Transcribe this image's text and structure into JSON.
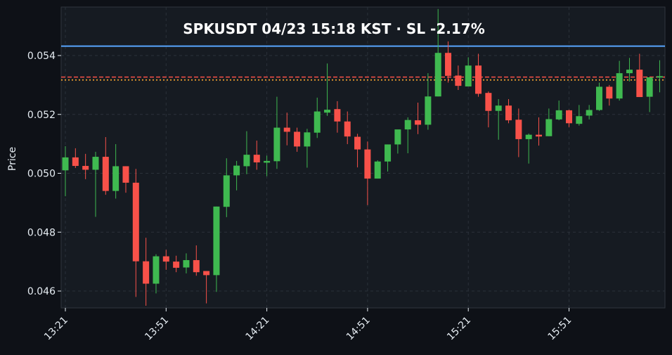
{
  "chart_data": {
    "type": "candlestick",
    "title": "SPKUSDT  04/23 15:18 KST  ·  SL -2.17%",
    "symbol": "SPKUSDT",
    "date": "04/23",
    "time": "15:18 KST",
    "stop_loss_pct": "-2.17%",
    "xlabel": "",
    "ylabel": "Price",
    "ylim": [
      0.0454,
      0.0556
    ],
    "grid": true,
    "yticks": [
      "0.046",
      "0.048",
      "0.050",
      "0.052",
      "0.054"
    ],
    "ytick_values": [
      0.046,
      0.048,
      0.05,
      0.052,
      0.054
    ],
    "xticks": [
      "13:21",
      "13:51",
      "14:21",
      "14:51",
      "15:21",
      "15:51"
    ],
    "interval_minutes": 3,
    "hlines": [
      {
        "name": "blue-line",
        "value": 0.05432,
        "color": "#58a6ff",
        "style": "solid"
      },
      {
        "name": "red-dashed-line",
        "value": 0.05327,
        "color": "#f85149",
        "style": "dashed"
      },
      {
        "name": "orange-dotted-line",
        "value": 0.05317,
        "color": "#f0a030",
        "style": "dotted"
      }
    ],
    "colors": {
      "up": "#3fb950",
      "down": "#f85149",
      "background": "#161b22",
      "figure": "#0e1117"
    },
    "candles": [
      {
        "t": "13:21",
        "o": 0.0501,
        "h": 0.05092,
        "l": 0.04922,
        "c": 0.05054
      },
      {
        "t": "13:24",
        "o": 0.05054,
        "h": 0.05085,
        "l": 0.05018,
        "c": 0.05025
      },
      {
        "t": "13:27",
        "o": 0.05025,
        "h": 0.05066,
        "l": 0.0498,
        "c": 0.05012
      },
      {
        "t": "13:30",
        "o": 0.05012,
        "h": 0.05073,
        "l": 0.04852,
        "c": 0.05056
      },
      {
        "t": "13:33",
        "o": 0.05056,
        "h": 0.05123,
        "l": 0.04927,
        "c": 0.0494
      },
      {
        "t": "13:36",
        "o": 0.0494,
        "h": 0.05099,
        "l": 0.04914,
        "c": 0.05024
      },
      {
        "t": "13:39",
        "o": 0.05024,
        "h": 0.05024,
        "l": 0.04934,
        "c": 0.04968
      },
      {
        "t": "13:42",
        "o": 0.04968,
        "h": 0.05015,
        "l": 0.0458,
        "c": 0.04701
      },
      {
        "t": "13:45",
        "o": 0.04701,
        "h": 0.04781,
        "l": 0.0455,
        "c": 0.04625
      },
      {
        "t": "13:48",
        "o": 0.04625,
        "h": 0.04725,
        "l": 0.04592,
        "c": 0.04718
      },
      {
        "t": "13:51",
        "o": 0.04718,
        "h": 0.0474,
        "l": 0.04672,
        "c": 0.047
      },
      {
        "t": "13:54",
        "o": 0.047,
        "h": 0.0472,
        "l": 0.04664,
        "c": 0.04679
      },
      {
        "t": "13:57",
        "o": 0.0468,
        "h": 0.04728,
        "l": 0.0466,
        "c": 0.04705
      },
      {
        "t": "14:00",
        "o": 0.04705,
        "h": 0.04755,
        "l": 0.04652,
        "c": 0.04664
      },
      {
        "t": "14:03",
        "o": 0.04668,
        "h": 0.04668,
        "l": 0.04558,
        "c": 0.04654
      },
      {
        "t": "14:06",
        "o": 0.04654,
        "h": 0.04887,
        "l": 0.04597,
        "c": 0.04887
      },
      {
        "t": "14:09",
        "o": 0.04886,
        "h": 0.05051,
        "l": 0.04851,
        "c": 0.04993
      },
      {
        "t": "14:12",
        "o": 0.04993,
        "h": 0.05042,
        "l": 0.04942,
        "c": 0.05026
      },
      {
        "t": "14:15",
        "o": 0.05024,
        "h": 0.05143,
        "l": 0.04997,
        "c": 0.05063
      },
      {
        "t": "14:18",
        "o": 0.05063,
        "h": 0.05111,
        "l": 0.05012,
        "c": 0.05037
      },
      {
        "t": "14:21",
        "o": 0.05036,
        "h": 0.0506,
        "l": 0.0499,
        "c": 0.05042
      },
      {
        "t": "14:24",
        "o": 0.05041,
        "h": 0.0526,
        "l": 0.05015,
        "c": 0.05155
      },
      {
        "t": "14:27",
        "o": 0.05155,
        "h": 0.05206,
        "l": 0.05095,
        "c": 0.05141
      },
      {
        "t": "14:30",
        "o": 0.05141,
        "h": 0.05155,
        "l": 0.05073,
        "c": 0.05091
      },
      {
        "t": "14:33",
        "o": 0.05091,
        "h": 0.05151,
        "l": 0.05019,
        "c": 0.05139
      },
      {
        "t": "14:36",
        "o": 0.05138,
        "h": 0.05257,
        "l": 0.0512,
        "c": 0.0521
      },
      {
        "t": "14:39",
        "o": 0.05206,
        "h": 0.05373,
        "l": 0.05195,
        "c": 0.05216
      },
      {
        "t": "14:42",
        "o": 0.05218,
        "h": 0.05245,
        "l": 0.05138,
        "c": 0.05176
      },
      {
        "t": "14:45",
        "o": 0.05176,
        "h": 0.0521,
        "l": 0.05099,
        "c": 0.05125
      },
      {
        "t": "14:48",
        "o": 0.05124,
        "h": 0.05134,
        "l": 0.0502,
        "c": 0.05081
      },
      {
        "t": "14:51",
        "o": 0.05081,
        "h": 0.05108,
        "l": 0.04892,
        "c": 0.04982
      },
      {
        "t": "14:54",
        "o": 0.04982,
        "h": 0.05044,
        "l": 0.04982,
        "c": 0.0504
      },
      {
        "t": "14:57",
        "o": 0.0504,
        "h": 0.05098,
        "l": 0.05006,
        "c": 0.05098
      },
      {
        "t": "15:00",
        "o": 0.05098,
        "h": 0.05148,
        "l": 0.05067,
        "c": 0.05149
      },
      {
        "t": "15:03",
        "o": 0.05149,
        "h": 0.0519,
        "l": 0.05068,
        "c": 0.05181
      },
      {
        "t": "15:06",
        "o": 0.0518,
        "h": 0.0524,
        "l": 0.05133,
        "c": 0.05165
      },
      {
        "t": "15:09",
        "o": 0.05165,
        "h": 0.0534,
        "l": 0.05148,
        "c": 0.05261
      },
      {
        "t": "15:12",
        "o": 0.05261,
        "h": 0.05558,
        "l": 0.05261,
        "c": 0.05409
      },
      {
        "t": "15:15",
        "o": 0.05409,
        "h": 0.05448,
        "l": 0.05308,
        "c": 0.05331
      },
      {
        "t": "15:18",
        "o": 0.05332,
        "h": 0.05366,
        "l": 0.05283,
        "c": 0.05297
      },
      {
        "t": "15:21",
        "o": 0.05295,
        "h": 0.05394,
        "l": 0.05295,
        "c": 0.05366
      },
      {
        "t": "15:24",
        "o": 0.05366,
        "h": 0.05406,
        "l": 0.0526,
        "c": 0.0527
      },
      {
        "t": "15:27",
        "o": 0.05273,
        "h": 0.05278,
        "l": 0.05156,
        "c": 0.05212
      },
      {
        "t": "15:30",
        "o": 0.05212,
        "h": 0.05252,
        "l": 0.05114,
        "c": 0.0523
      },
      {
        "t": "15:33",
        "o": 0.0523,
        "h": 0.05252,
        "l": 0.0517,
        "c": 0.0518
      },
      {
        "t": "15:36",
        "o": 0.05182,
        "h": 0.0522,
        "l": 0.05055,
        "c": 0.05116
      },
      {
        "t": "15:39",
        "o": 0.05116,
        "h": 0.05135,
        "l": 0.05033,
        "c": 0.05131
      },
      {
        "t": "15:42",
        "o": 0.05131,
        "h": 0.0519,
        "l": 0.05094,
        "c": 0.05125
      },
      {
        "t": "15:45",
        "o": 0.05126,
        "h": 0.0522,
        "l": 0.05126,
        "c": 0.05184
      },
      {
        "t": "15:48",
        "o": 0.05183,
        "h": 0.05247,
        "l": 0.0518,
        "c": 0.05214
      },
      {
        "t": "15:51",
        "o": 0.05214,
        "h": 0.05216,
        "l": 0.05157,
        "c": 0.0517
      },
      {
        "t": "15:54",
        "o": 0.05168,
        "h": 0.05232,
        "l": 0.05162,
        "c": 0.05194
      },
      {
        "t": "15:57",
        "o": 0.05196,
        "h": 0.05232,
        "l": 0.05183,
        "c": 0.05215
      },
      {
        "t": "16:00",
        "o": 0.05215,
        "h": 0.05308,
        "l": 0.05212,
        "c": 0.05294
      },
      {
        "t": "16:03",
        "o": 0.05294,
        "h": 0.053,
        "l": 0.0523,
        "c": 0.05254
      },
      {
        "t": "16:06",
        "o": 0.05254,
        "h": 0.05382,
        "l": 0.05247,
        "c": 0.0534
      },
      {
        "t": "16:09",
        "o": 0.0534,
        "h": 0.05392,
        "l": 0.05312,
        "c": 0.05352
      },
      {
        "t": "16:12",
        "o": 0.05352,
        "h": 0.05406,
        "l": 0.05259,
        "c": 0.05259
      },
      {
        "t": "16:15",
        "o": 0.0526,
        "h": 0.05326,
        "l": 0.05208,
        "c": 0.05326
      },
      {
        "t": "16:18",
        "o": 0.05326,
        "h": 0.05384,
        "l": 0.05275,
        "c": 0.0533
      }
    ]
  }
}
